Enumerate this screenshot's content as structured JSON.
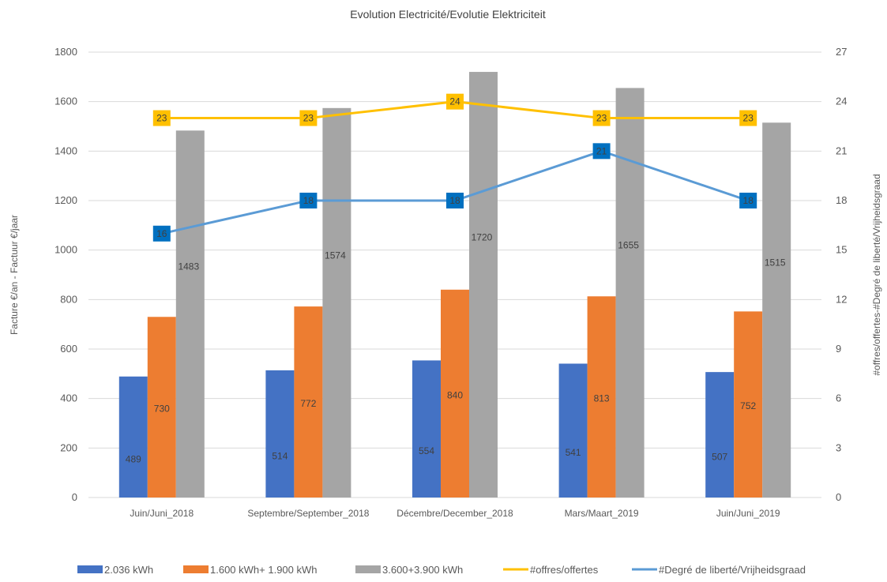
{
  "chart_data": {
    "type": "bar",
    "title": "Evolution Electricité/Evolutie Elektriciteit",
    "categories": [
      "Juin/Juni_2018",
      "Septembre/September_2018",
      "Décembre/December_2018",
      "Mars/Maart_2019",
      "Juin/Juni_2019"
    ],
    "ylabel": "Facture €/an - Factuur €/jaar",
    "ylabel_right": "#offres/offertes-#Degré de liberté/Vrijheidsgraad",
    "ylim": [
      0,
      1800
    ],
    "y_ticks": [
      0,
      200,
      400,
      600,
      800,
      1000,
      1200,
      1400,
      1600,
      1800
    ],
    "ylim_right": [
      0,
      27
    ],
    "y_ticks_right": [
      0,
      3,
      6,
      9,
      12,
      15,
      18,
      21,
      24,
      27
    ],
    "grid": true,
    "legend_position": "bottom",
    "series": [
      {
        "name": "2.036 kWh",
        "kind": "bar",
        "axis": "left",
        "color": "#4472C4",
        "values": [
          489,
          514,
          554,
          541,
          507
        ]
      },
      {
        "name": "1.600 kWh+ 1.900 kWh",
        "kind": "bar",
        "axis": "left",
        "color": "#ED7D31",
        "values": [
          730,
          772,
          840,
          813,
          752
        ]
      },
      {
        "name": "3.600+3.900 kWh",
        "kind": "bar",
        "axis": "left",
        "color": "#A5A5A5",
        "values": [
          1483,
          1574,
          1720,
          1655,
          1515
        ]
      },
      {
        "name": "#offres/offertes",
        "kind": "line",
        "axis": "right",
        "color": "#FFC000",
        "values": [
          23,
          23,
          24,
          23,
          23
        ]
      },
      {
        "name": "#Degré de liberté/Vrijheidsgraad",
        "kind": "line",
        "axis": "right",
        "color": "#5B9BD5",
        "marker_color": "#0070C0",
        "values": [
          16,
          18,
          18,
          21,
          18
        ]
      }
    ]
  }
}
